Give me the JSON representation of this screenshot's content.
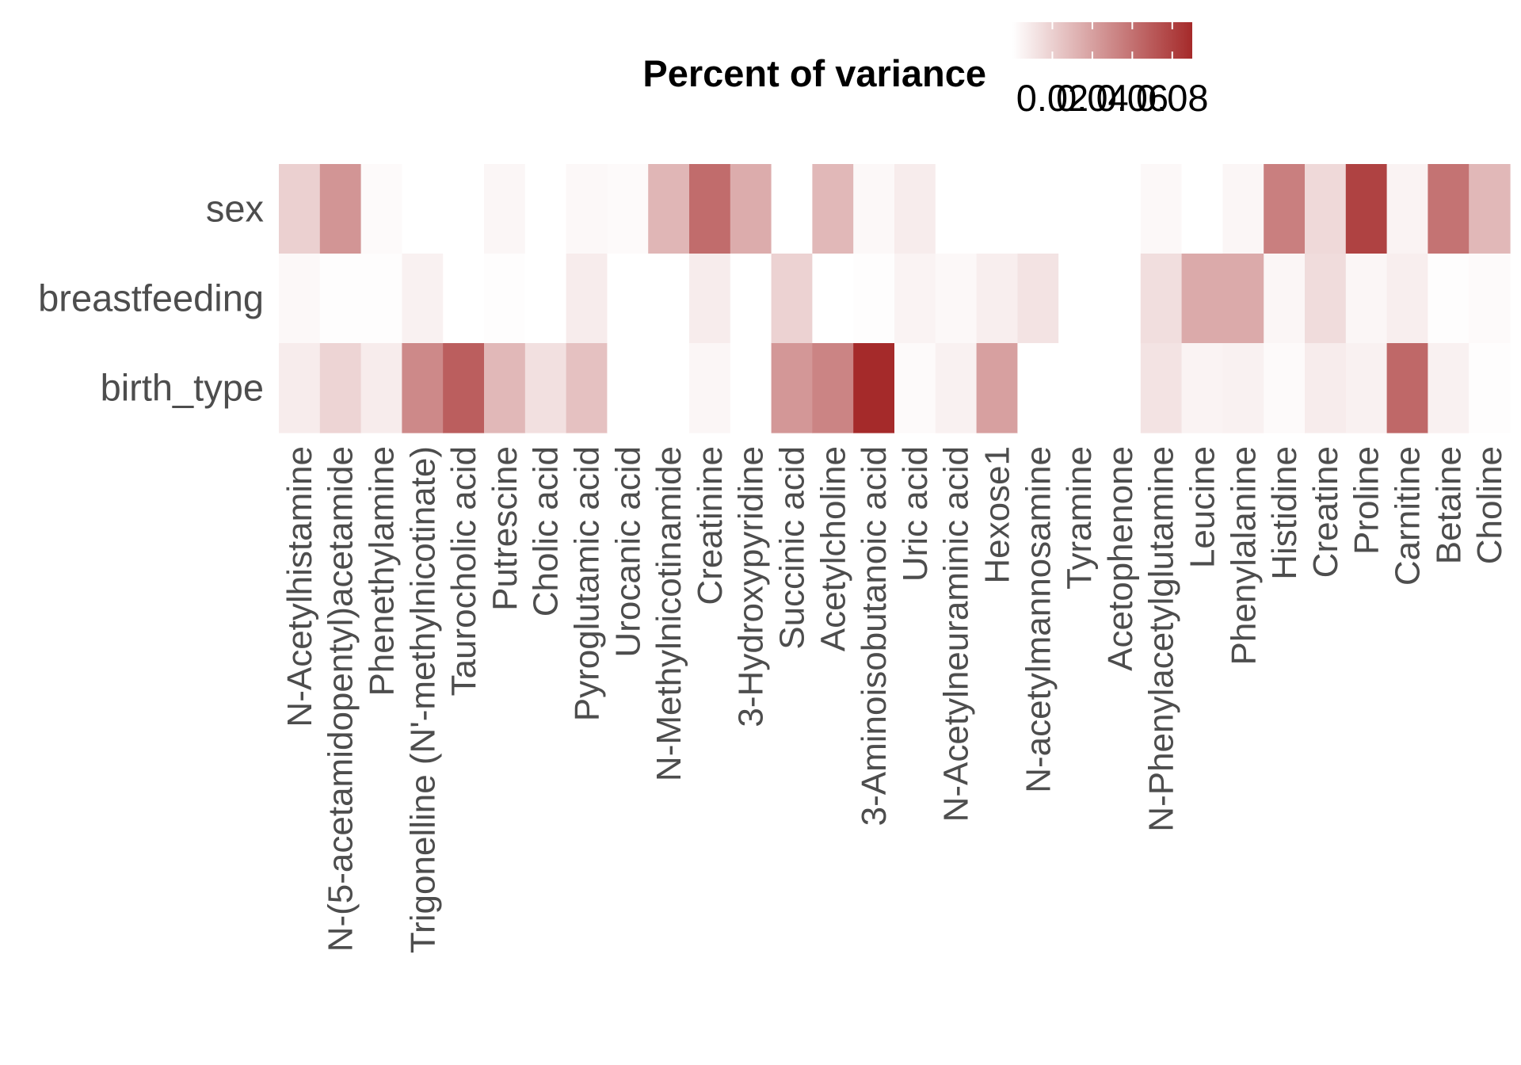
{
  "chart_data": {
    "type": "heatmap",
    "title": "",
    "xlabel": "",
    "ylabel": "",
    "legend": {
      "title": "Percent of variance",
      "placement": "top",
      "ticks": [
        "0.02",
        "0.04",
        "0.06",
        "0.08"
      ],
      "tick_values": [
        0.02,
        0.04,
        0.06,
        0.08
      ],
      "range": [
        0,
        0.09
      ],
      "low_color": "#ffffff",
      "high_color": "#a52a2a"
    },
    "rows": [
      "sex",
      "breastfeeding",
      "birth_type"
    ],
    "columns": [
      "N-Acetylhistamine",
      "N-(5-acetamidopentyl)acetamide",
      "Phenethylamine",
      "Trigonelline (N'-methylnicotinate)",
      "Taurocholic acid",
      "Putrescine",
      "Cholic acid",
      "Pyroglutamic acid",
      "Urocanic acid",
      "N-Methylnicotinamide",
      "Creatinine",
      "3-Hydroxypyridine",
      "Succinic acid",
      "Acetylcholine",
      "3-Aminoisobutanoic acid",
      "Uric acid",
      "N-Acetylneuraminic acid",
      "Hexose1",
      "N-acetylmannosamine",
      "Tyramine",
      "Acetophenone",
      "N-Phenylacetylglutamine",
      "Leucine",
      "Phenylalanine",
      "Histidine",
      "Creatine",
      "Proline",
      "Carnitine",
      "Betaine",
      "Choline"
    ],
    "values": [
      [
        0.02,
        0.045,
        0.002,
        0.0,
        0.0,
        0.004,
        0.0,
        0.003,
        0.002,
        0.031,
        0.062,
        0.035,
        0.0,
        0.03,
        0.003,
        0.008,
        0.0,
        0.0,
        0.0,
        0.0,
        0.0,
        0.003,
        0.0,
        0.004,
        0.054,
        0.016,
        0.08,
        0.005,
        0.059,
        0.03
      ],
      [
        0.003,
        0.001,
        0.001,
        0.006,
        0.0,
        0.001,
        0.0,
        0.008,
        0.0,
        0.0,
        0.008,
        0.0,
        0.019,
        0.0,
        0.001,
        0.005,
        0.003,
        0.007,
        0.012,
        0.0,
        0.0,
        0.014,
        0.036,
        0.036,
        0.004,
        0.015,
        0.004,
        0.007,
        0.001,
        0.002
      ],
      [
        0.008,
        0.018,
        0.008,
        0.05,
        0.068,
        0.03,
        0.013,
        0.026,
        0.0,
        0.0,
        0.004,
        0.0,
        0.044,
        0.052,
        0.09,
        0.002,
        0.006,
        0.04,
        0.0,
        0.0,
        0.0,
        0.012,
        0.005,
        0.006,
        0.002,
        0.008,
        0.006,
        0.064,
        0.006,
        0.001
      ]
    ]
  }
}
